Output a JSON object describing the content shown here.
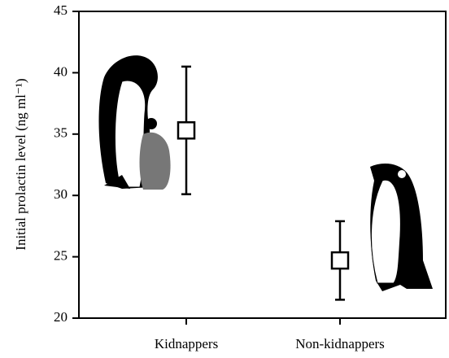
{
  "chart_data": {
    "type": "errorbar",
    "ylabel": "Initial prolactin level (ng ml⁻¹)",
    "categories": [
      "Kidnappers",
      "Non-kidnappers"
    ],
    "values": [
      35.3,
      24.7
    ],
    "errors": [
      5.2,
      3.2
    ],
    "ylim": [
      20,
      45
    ],
    "yticks": [
      20,
      25,
      30,
      35,
      40,
      45
    ],
    "color": "#000000"
  }
}
